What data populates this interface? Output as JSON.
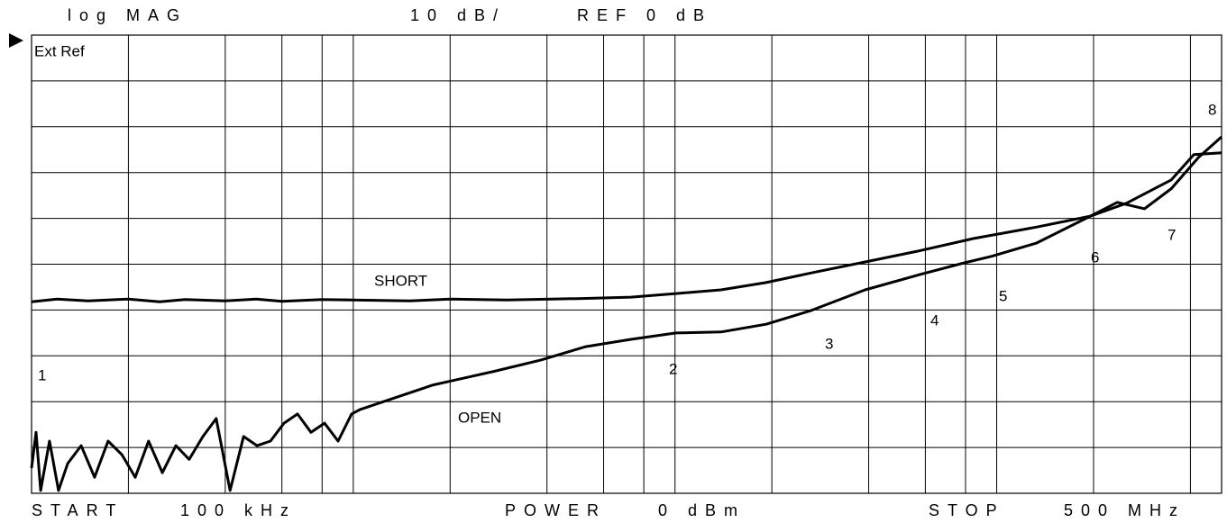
{
  "chart_data": {
    "type": "line",
    "header": [
      "log MAG",
      "10 dB/",
      "REF 0 dB"
    ],
    "footer": [
      "START",
      "100 kHz",
      "POWER",
      "0 dBm",
      "STOP",
      "500 MHz"
    ],
    "status": "Ext Ref",
    "annotations": [
      "1",
      "2",
      "3",
      "4",
      "5",
      "6",
      "7",
      "8",
      "SHORT",
      "OPEN"
    ],
    "xscale": "log",
    "xlim": [
      0.1,
      500
    ],
    "xticks": [
      0.1,
      0.2,
      0.4,
      0.6,
      0.8,
      1,
      2,
      4,
      6,
      8,
      10,
      20,
      40,
      60,
      80,
      100,
      200,
      400,
      500
    ],
    "ylim": [
      -100,
      0
    ],
    "yticks": [
      -100,
      -90,
      -80,
      -70,
      -60,
      -50,
      -40,
      -30,
      -20,
      -10,
      0
    ],
    "grid": true,
    "series": [
      {
        "name": "SHORT",
        "color": "#000000",
        "x": [
          0.1,
          0.12,
          0.15,
          0.2,
          0.25,
          0.3,
          0.4,
          0.5,
          0.6,
          0.8,
          0.988,
          1.5,
          2,
          3,
          5,
          7.29,
          10.07,
          13.9,
          19.2,
          26.5,
          39.0,
          57.4,
          84.6,
          132.8,
          195.5,
          253,
          349,
          410,
          500
        ],
        "values": [
          -58.2,
          -57.6,
          -58.0,
          -57.6,
          -58.2,
          -57.7,
          -58.0,
          -57.6,
          -58.1,
          -57.7,
          -57.8,
          -58.0,
          -57.6,
          -57.8,
          -57.5,
          -57.2,
          -56.4,
          -55.6,
          -54.0,
          -51.9,
          -49.5,
          -47.1,
          -44.4,
          -41.9,
          -39.5,
          -36.7,
          -31.6,
          -26.1,
          -25.7
        ]
      },
      {
        "name": "OPEN",
        "color": "#000000",
        "x": [
          0.1,
          0.1033,
          0.1067,
          0.1137,
          0.1213,
          0.1295,
          0.1426,
          0.157,
          0.173,
          0.191,
          0.21,
          0.231,
          0.255,
          0.281,
          0.309,
          0.341,
          0.375,
          0.414,
          0.456,
          0.502,
          0.553,
          0.609,
          0.671,
          0.739,
          0.814,
          0.897,
          0.988,
          1.05,
          1.76,
          2.77,
          3.83,
          5.28,
          7.29,
          10.07,
          13.9,
          19.2,
          26.5,
          39.0,
          57.4,
          79.3,
          96.2,
          132.8,
          195.5,
          237,
          288,
          349,
          424,
          500
        ],
        "values": [
          -94.5,
          -86.7,
          -99.4,
          -88.6,
          -99.4,
          -93.5,
          -89.6,
          -96.5,
          -88.6,
          -91.6,
          -96.5,
          -88.6,
          -95.5,
          -89.6,
          -92.6,
          -87.6,
          -83.7,
          -99.4,
          -87.6,
          -89.6,
          -88.6,
          -84.7,
          -82.7,
          -86.7,
          -84.7,
          -88.6,
          -82.7,
          -81.7,
          -76.4,
          -73.3,
          -70.9,
          -68.0,
          -66.4,
          -65.0,
          -64.8,
          -63.1,
          -60.1,
          -55.6,
          -52.3,
          -49.7,
          -48.3,
          -45.4,
          -39.5,
          -36.5,
          -37.9,
          -33.5,
          -26.7,
          -22.2
        ]
      }
    ]
  }
}
